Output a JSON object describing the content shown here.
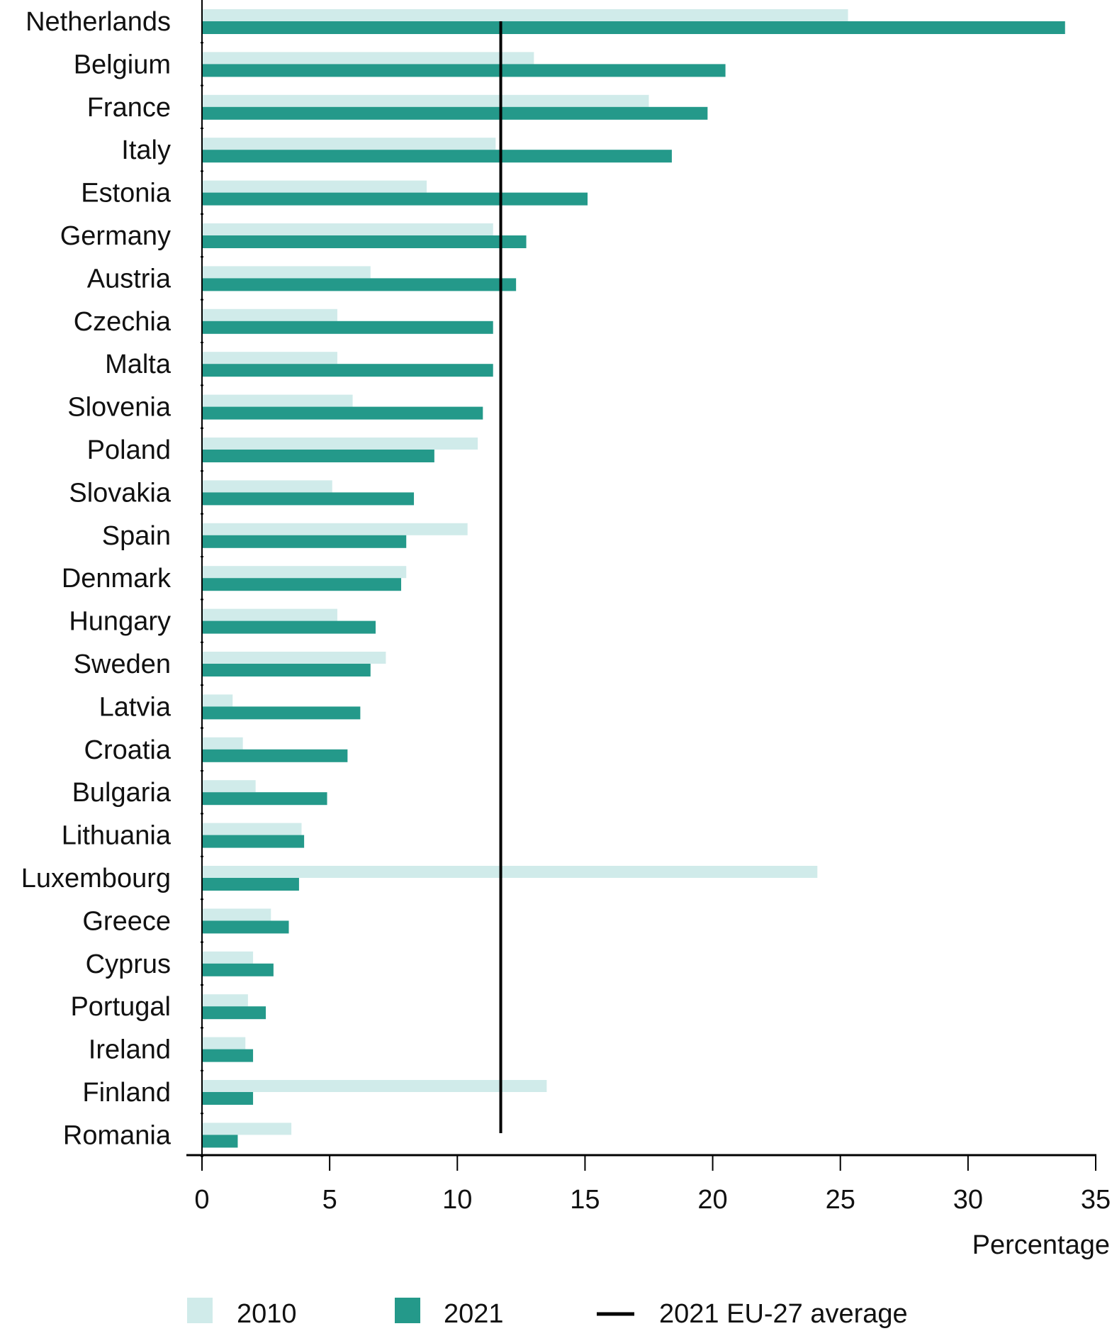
{
  "chart_data": {
    "type": "bar",
    "orientation": "horizontal",
    "title": "",
    "xlabel": "Percentage",
    "ylabel": "",
    "xlim": [
      0,
      35
    ],
    "xticks": [
      0,
      5,
      10,
      15,
      20,
      25,
      30,
      35
    ],
    "grid": false,
    "legend_position": "bottom",
    "categories": [
      "Netherlands",
      "Belgium",
      "France",
      "Italy",
      "Estonia",
      "Germany",
      "Austria",
      "Czechia",
      "Malta",
      "Slovenia",
      "Poland",
      "Slovakia",
      "Spain",
      "Denmark",
      "Hungary",
      "Sweden",
      "Latvia",
      "Croatia",
      "Bulgaria",
      "Lithuania",
      "Luxembourg",
      "Greece",
      "Cyprus",
      "Portugal",
      "Ireland",
      "Finland",
      "Romania"
    ],
    "series": [
      {
        "name": "2010",
        "color": "#d0ebea",
        "values": [
          25.3,
          13.0,
          17.5,
          11.5,
          8.8,
          11.4,
          6.6,
          5.3,
          5.3,
          5.9,
          10.8,
          5.1,
          10.4,
          8.0,
          5.3,
          7.2,
          1.2,
          1.6,
          2.1,
          3.9,
          24.1,
          2.7,
          2.0,
          1.8,
          1.7,
          13.5,
          3.5
        ]
      },
      {
        "name": "2021",
        "color": "#24998a",
        "values": [
          33.8,
          20.5,
          19.8,
          18.4,
          15.1,
          12.7,
          12.3,
          11.4,
          11.4,
          11.0,
          9.1,
          8.3,
          8.0,
          7.8,
          6.8,
          6.6,
          6.2,
          5.7,
          4.9,
          4.0,
          3.8,
          3.4,
          2.8,
          2.5,
          2.0,
          2.0,
          1.4
        ]
      }
    ],
    "reference_line": {
      "name": "2021 EU-27 average",
      "value": 11.7,
      "color": "#000000"
    }
  }
}
